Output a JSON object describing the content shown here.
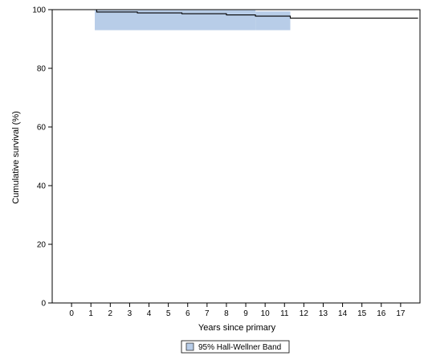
{
  "chart_data": {
    "type": "line",
    "title": "",
    "xlabel": "Years since primary",
    "ylabel": "Cumulative survival (%)",
    "xlim": [
      -1,
      18
    ],
    "ylim": [
      0,
      100
    ],
    "x_ticks": [
      0,
      1,
      2,
      3,
      4,
      5,
      6,
      7,
      8,
      9,
      10,
      11,
      12,
      13,
      14,
      15,
      16,
      17
    ],
    "y_ticks": [
      0,
      20,
      40,
      60,
      80,
      100
    ],
    "grid": false,
    "legend_position": "bottom-center",
    "series": [
      {
        "kind": "step",
        "x": [
          0,
          1.3,
          3.4,
          5.7,
          8.0,
          9.5,
          11.3,
          17.9
        ],
        "y": [
          100,
          99.2,
          98.9,
          98.6,
          98.2,
          97.8,
          97.1,
          97.1
        ]
      }
    ],
    "band": {
      "name": "95% Hall-Wellner Band",
      "color": "#b8cde8",
      "x": [
        1.2,
        9.5,
        11.3
      ],
      "upper": [
        99.8,
        99.4,
        99.4
      ],
      "lower": [
        93,
        93,
        93
      ]
    }
  }
}
